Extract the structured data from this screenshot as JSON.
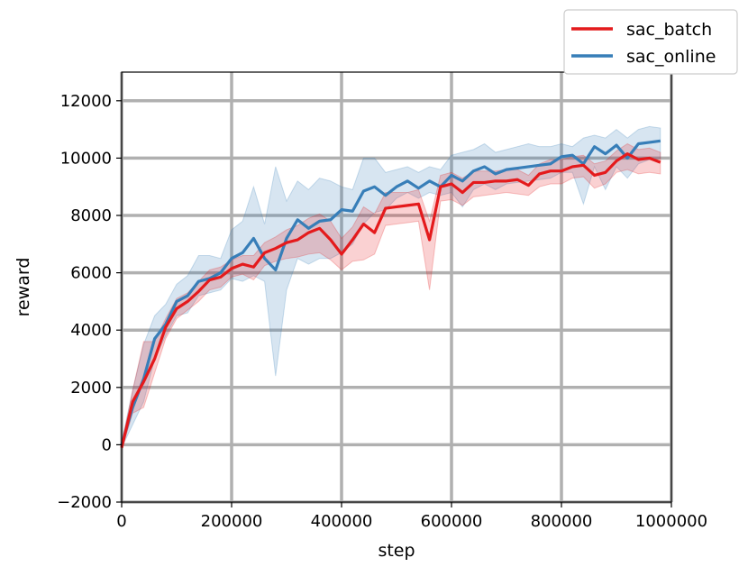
{
  "chart_data": {
    "type": "line",
    "title": "",
    "xlabel": "step",
    "ylabel": "reward",
    "xlim": [
      0,
      1000000
    ],
    "ylim": [
      -2000,
      13000
    ],
    "xticks": [
      0,
      200000,
      400000,
      600000,
      800000,
      1000000
    ],
    "xtick_labels": [
      "0",
      "200000",
      "400000",
      "600000",
      "800000",
      "1000000"
    ],
    "yticks": [
      -2000,
      0,
      2000,
      4000,
      6000,
      8000,
      10000,
      12000
    ],
    "ytick_labels": [
      "−2000",
      "0",
      "2000",
      "4000",
      "6000",
      "8000",
      "10000",
      "12000"
    ],
    "grid": true,
    "legend_position": "top-right",
    "series": [
      {
        "name": "sac_batch",
        "color": "#e41a1c",
        "x": [
          0,
          20000,
          40000,
          60000,
          80000,
          100000,
          120000,
          140000,
          160000,
          180000,
          200000,
          220000,
          240000,
          260000,
          280000,
          300000,
          320000,
          340000,
          360000,
          380000,
          400000,
          420000,
          440000,
          460000,
          480000,
          500000,
          520000,
          540000,
          560000,
          580000,
          600000,
          620000,
          640000,
          660000,
          680000,
          700000,
          720000,
          740000,
          760000,
          780000,
          800000,
          820000,
          840000,
          860000,
          880000,
          900000,
          920000,
          940000,
          960000,
          980000
        ],
        "y": [
          -100,
          1500,
          2200,
          3000,
          4100,
          4750,
          5000,
          5350,
          5750,
          5850,
          6150,
          6300,
          6200,
          6700,
          6850,
          7050,
          7150,
          7400,
          7550,
          7150,
          6650,
          7150,
          7700,
          7400,
          8250,
          8300,
          8350,
          8400,
          7150,
          9000,
          9100,
          8800,
          9150,
          9150,
          9200,
          9200,
          9250,
          9050,
          9450,
          9550,
          9550,
          9700,
          9750,
          9400,
          9500,
          9900,
          10150,
          9950,
          10000,
          9850
        ],
        "lower": [
          -200,
          1100,
          1300,
          2500,
          3700,
          4400,
          4700,
          5000,
          5400,
          5500,
          5850,
          5950,
          5750,
          6250,
          6400,
          6500,
          6550,
          6650,
          6700,
          6450,
          6100,
          6400,
          6450,
          6650,
          7650,
          7700,
          7750,
          7800,
          5400,
          8500,
          8550,
          8350,
          8650,
          8700,
          8750,
          8800,
          8750,
          8700,
          9000,
          9100,
          9100,
          9300,
          9350,
          8950,
          9100,
          9500,
          9600,
          9450,
          9500,
          9450
        ],
        "upper": [
          0,
          1900,
          3600,
          3600,
          4400,
          5100,
          5300,
          5700,
          6100,
          6200,
          6450,
          6600,
          6600,
          7050,
          7250,
          7500,
          7650,
          7900,
          8050,
          7800,
          7200,
          7600,
          8300,
          8050,
          8800,
          8800,
          8800,
          8900,
          7800,
          9400,
          9500,
          9300,
          9550,
          9550,
          9550,
          9600,
          9600,
          9400,
          9800,
          9950,
          9950,
          10050,
          10100,
          9800,
          9900,
          10250,
          10500,
          10300,
          10350,
          10200
        ]
      },
      {
        "name": "sac_online",
        "color": "#377eb8",
        "x": [
          0,
          20000,
          40000,
          60000,
          80000,
          100000,
          120000,
          140000,
          160000,
          180000,
          200000,
          220000,
          240000,
          260000,
          280000,
          300000,
          320000,
          340000,
          360000,
          380000,
          400000,
          420000,
          440000,
          460000,
          480000,
          500000,
          520000,
          540000,
          560000,
          580000,
          600000,
          620000,
          640000,
          660000,
          680000,
          700000,
          720000,
          740000,
          760000,
          780000,
          800000,
          820000,
          840000,
          860000,
          880000,
          900000,
          920000,
          940000,
          960000,
          980000
        ],
        "y": [
          0,
          1300,
          2300,
          3700,
          4200,
          5000,
          5200,
          5700,
          5800,
          6000,
          6500,
          6700,
          7200,
          6500,
          6100,
          7200,
          7850,
          7550,
          7800,
          7850,
          8200,
          8150,
          8850,
          9000,
          8700,
          9000,
          9200,
          8950,
          9200,
          9000,
          9400,
          9200,
          9550,
          9700,
          9450,
          9600,
          9650,
          9700,
          9750,
          9800,
          10050,
          10100,
          9800,
          10400,
          10150,
          10450,
          10000,
          10500,
          10550,
          10600
        ],
        "lower": [
          -100,
          700,
          1500,
          3000,
          3800,
          4500,
          4600,
          5200,
          5300,
          5400,
          5800,
          5700,
          5900,
          5700,
          2400,
          5400,
          6500,
          6300,
          6500,
          6500,
          6700,
          7000,
          7700,
          8100,
          8200,
          8600,
          8800,
          8600,
          8800,
          8700,
          8800,
          8300,
          8900,
          9100,
          8900,
          9100,
          9150,
          9200,
          9250,
          9300,
          9500,
          9500,
          8400,
          9700,
          8900,
          9700,
          9300,
          9800,
          9950,
          10000
        ],
        "upper": [
          100,
          1900,
          3500,
          4500,
          4900,
          5600,
          5900,
          6600,
          6600,
          6500,
          7500,
          7800,
          9000,
          7700,
          9700,
          8500,
          9200,
          8900,
          9300,
          9200,
          9000,
          8900,
          10000,
          10000,
          9500,
          9600,
          9700,
          9500,
          9700,
          9600,
          10100,
          10200,
          10300,
          10500,
          10200,
          10300,
          10400,
          10500,
          10400,
          10400,
          10500,
          10400,
          10700,
          10800,
          10700,
          11000,
          10700,
          11000,
          11100,
          11050
        ]
      }
    ]
  }
}
